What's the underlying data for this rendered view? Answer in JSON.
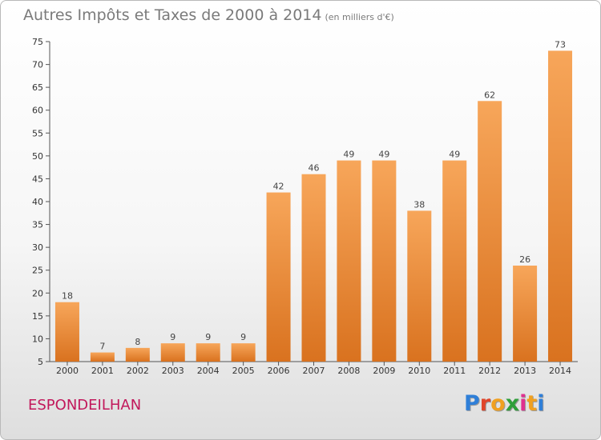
{
  "header": {
    "title": "Autres Impôts et Taxes de 2000 à 2014",
    "subtitle": "(en milliers d'€)"
  },
  "footer": {
    "commune": "ESPONDEILHAN",
    "logo": [
      "P",
      "r",
      "o",
      "x",
      "i",
      "t",
      "i"
    ]
  },
  "colors": {
    "bar_light": "#f7a65a",
    "bar_dark": "#d9721f",
    "commune": "#c2185b",
    "logo": [
      "#2f7fd8",
      "#e0452a",
      "#f0a020",
      "#2f9f3a",
      "#e03090",
      "#f0a020",
      "#2f7fd8"
    ]
  },
  "chart_data": {
    "type": "bar",
    "title": "Autres Impôts et Taxes de 2000 à 2014",
    "subtitle": "(en milliers d'€)",
    "categories": [
      "2000",
      "2001",
      "2002",
      "2003",
      "2004",
      "2005",
      "2006",
      "2007",
      "2008",
      "2009",
      "2010",
      "2011",
      "2012",
      "2013",
      "2014"
    ],
    "values": [
      18,
      7,
      8,
      9,
      9,
      9,
      42,
      46,
      49,
      49,
      38,
      49,
      62,
      26,
      73
    ],
    "ylim": [
      5,
      75
    ],
    "yticks": [
      5,
      10,
      15,
      20,
      25,
      30,
      35,
      40,
      45,
      50,
      55,
      60,
      65,
      70,
      75
    ],
    "xlabel": "",
    "ylabel": "",
    "grid": false
  }
}
